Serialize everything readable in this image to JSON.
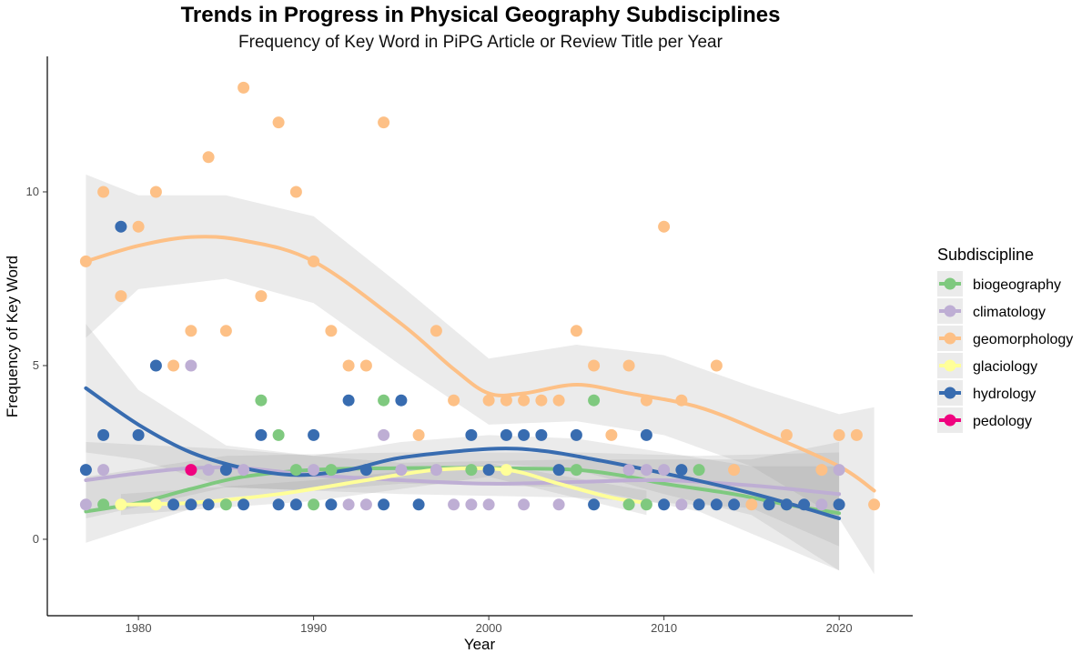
{
  "chart_data": {
    "type": "scatter",
    "title": "Trends in Progress in Physical Geography Subdisciplines",
    "subtitle": "Frequency of Key Word in PiPG Article or Review Title per Year",
    "xlabel": "Year",
    "ylabel": "Frequency of Key Word",
    "xlim": [
      1974.8,
      2024.2
    ],
    "ylim": [
      -2.2,
      13.9
    ],
    "xticks": [
      1980,
      1990,
      2000,
      2010,
      2020
    ],
    "yticks": [
      0,
      5,
      10
    ],
    "legend_title": "Subdiscipline",
    "legend_position": "right",
    "series": [
      {
        "name": "biogeography",
        "color": "#7fc97f",
        "points": [
          [
            1978,
            1
          ],
          [
            1985,
            1
          ],
          [
            1987,
            4
          ],
          [
            1988,
            3
          ],
          [
            1989,
            2
          ],
          [
            1990,
            1
          ],
          [
            1991,
            2
          ],
          [
            1994,
            4
          ],
          [
            1999,
            2
          ],
          [
            2005,
            2
          ],
          [
            2006,
            4
          ],
          [
            2008,
            1
          ],
          [
            2009,
            1
          ],
          [
            2012,
            2
          ],
          [
            2017,
            1
          ]
        ],
        "trend": [
          [
            1977,
            0.8
          ],
          [
            1980,
            1.05
          ],
          [
            1983,
            1.45
          ],
          [
            1986,
            1.8
          ],
          [
            1990,
            2.0
          ],
          [
            1995,
            2.05
          ],
          [
            2000,
            2.05
          ],
          [
            2005,
            2.0
          ],
          [
            2008,
            1.8
          ],
          [
            2010,
            1.6
          ],
          [
            2014,
            1.3
          ],
          [
            2017,
            1.0
          ],
          [
            2020,
            0.75
          ]
        ],
        "band_upper": [
          [
            1977,
            1.8
          ],
          [
            1985,
            2.4
          ],
          [
            1995,
            2.5
          ],
          [
            2005,
            2.5
          ],
          [
            2012,
            2.4
          ],
          [
            2020,
            2.5
          ]
        ],
        "band_lower": [
          [
            1977,
            -0.1
          ],
          [
            1985,
            1.2
          ],
          [
            1995,
            1.6
          ],
          [
            2005,
            1.5
          ],
          [
            2012,
            0.8
          ],
          [
            2020,
            -0.9
          ]
        ]
      },
      {
        "name": "climatology",
        "color": "#beaed4",
        "points": [
          [
            1977,
            1
          ],
          [
            1978,
            2
          ],
          [
            1983,
            5
          ],
          [
            1984,
            2
          ],
          [
            1986,
            2
          ],
          [
            1990,
            2
          ],
          [
            1992,
            1
          ],
          [
            1993,
            1
          ],
          [
            1994,
            3
          ],
          [
            1995,
            2
          ],
          [
            1997,
            2
          ],
          [
            1998,
            1
          ],
          [
            1999,
            1
          ],
          [
            2000,
            1
          ],
          [
            2002,
            1
          ],
          [
            2004,
            1
          ],
          [
            2008,
            2
          ],
          [
            2009,
            2
          ],
          [
            2010,
            2
          ],
          [
            2011,
            1
          ],
          [
            2019,
            1
          ],
          [
            2020,
            2
          ]
        ],
        "trend": [
          [
            1977,
            1.7
          ],
          [
            1980,
            1.9
          ],
          [
            1983,
            2.05
          ],
          [
            1986,
            2.05
          ],
          [
            1990,
            1.85
          ],
          [
            1995,
            1.7
          ],
          [
            2000,
            1.6
          ],
          [
            2005,
            1.65
          ],
          [
            2010,
            1.7
          ],
          [
            2015,
            1.55
          ],
          [
            2020,
            1.3
          ]
        ],
        "band_upper": [
          [
            1977,
            2.8
          ],
          [
            1985,
            2.6
          ],
          [
            1995,
            2.2
          ],
          [
            2005,
            2.3
          ],
          [
            2015,
            2.3
          ],
          [
            2020,
            2.8
          ]
        ],
        "band_lower": [
          [
            1977,
            0.6
          ],
          [
            1985,
            1.5
          ],
          [
            1995,
            1.3
          ],
          [
            2005,
            1.2
          ],
          [
            2015,
            0.9
          ],
          [
            2020,
            -0.2
          ]
        ]
      },
      {
        "name": "geomorphology",
        "color": "#fdc086",
        "points": [
          [
            1977,
            8
          ],
          [
            1978,
            10
          ],
          [
            1979,
            7
          ],
          [
            1980,
            9
          ],
          [
            1981,
            10
          ],
          [
            1982,
            5
          ],
          [
            1983,
            6
          ],
          [
            1984,
            11
          ],
          [
            1985,
            6
          ],
          [
            1986,
            13
          ],
          [
            1987,
            7
          ],
          [
            1988,
            12
          ],
          [
            1989,
            10
          ],
          [
            1990,
            8
          ],
          [
            1991,
            6
          ],
          [
            1992,
            5
          ],
          [
            1993,
            5
          ],
          [
            1994,
            12
          ],
          [
            1996,
            3
          ],
          [
            1997,
            6
          ],
          [
            1998,
            4
          ],
          [
            2000,
            4
          ],
          [
            2001,
            4
          ],
          [
            2002,
            4
          ],
          [
            2003,
            4
          ],
          [
            2004,
            4
          ],
          [
            2005,
            6
          ],
          [
            2006,
            5
          ],
          [
            2007,
            3
          ],
          [
            2008,
            5
          ],
          [
            2009,
            4
          ],
          [
            2010,
            9
          ],
          [
            2011,
            4
          ],
          [
            2013,
            5
          ],
          [
            2014,
            2
          ],
          [
            2015,
            1
          ],
          [
            2017,
            3
          ],
          [
            2019,
            2
          ],
          [
            2020,
            3
          ],
          [
            2021,
            3
          ],
          [
            2022,
            1
          ]
        ],
        "trend": [
          [
            1977,
            8.0
          ],
          [
            1980,
            8.45
          ],
          [
            1983,
            8.7
          ],
          [
            1986,
            8.6
          ],
          [
            1990,
            8.0
          ],
          [
            1995,
            6.2
          ],
          [
            1998,
            4.9
          ],
          [
            2000,
            4.2
          ],
          [
            2002,
            4.2
          ],
          [
            2005,
            4.45
          ],
          [
            2008,
            4.2
          ],
          [
            2012,
            3.8
          ],
          [
            2016,
            3.0
          ],
          [
            2020,
            2.1
          ],
          [
            2022,
            1.4
          ]
        ],
        "band_upper": [
          [
            1977,
            10.5
          ],
          [
            1980,
            9.9
          ],
          [
            1985,
            9.9
          ],
          [
            1990,
            9.3
          ],
          [
            1995,
            7.3
          ],
          [
            2000,
            5.2
          ],
          [
            2005,
            5.6
          ],
          [
            2010,
            5.3
          ],
          [
            2015,
            4.4
          ],
          [
            2020,
            3.6
          ],
          [
            2022,
            3.8
          ]
        ],
        "band_lower": [
          [
            1977,
            5.8
          ],
          [
            1980,
            7.2
          ],
          [
            1985,
            7.5
          ],
          [
            1990,
            6.8
          ],
          [
            1995,
            5.0
          ],
          [
            2000,
            3.3
          ],
          [
            2005,
            3.4
          ],
          [
            2010,
            3.0
          ],
          [
            2015,
            2.1
          ],
          [
            2020,
            0.6
          ],
          [
            2022,
            -1.0
          ]
        ]
      },
      {
        "name": "glaciology",
        "color": "#ffff99",
        "points": [
          [
            1979,
            1
          ],
          [
            1981,
            1
          ],
          [
            1984,
            1
          ],
          [
            2001,
            2
          ]
        ],
        "trend": [
          [
            1979,
            1.0
          ],
          [
            1983,
            1.05
          ],
          [
            1988,
            1.3
          ],
          [
            1993,
            1.7
          ],
          [
            1997,
            2.0
          ],
          [
            2001,
            2.0
          ],
          [
            2004,
            1.6
          ],
          [
            2007,
            1.2
          ],
          [
            2009,
            1.05
          ]
        ],
        "band_upper": [
          [
            1979,
            1.3
          ],
          [
            1990,
            1.7
          ],
          [
            2000,
            2.2
          ],
          [
            2009,
            1.4
          ]
        ],
        "band_lower": [
          [
            1979,
            0.7
          ],
          [
            1990,
            1.1
          ],
          [
            2000,
            1.8
          ],
          [
            2009,
            0.7
          ]
        ]
      },
      {
        "name": "hydrology",
        "color": "#386cb0",
        "points": [
          [
            1977,
            2
          ],
          [
            1978,
            3
          ],
          [
            1979,
            9
          ],
          [
            1980,
            3
          ],
          [
            1981,
            5
          ],
          [
            1982,
            1
          ],
          [
            1983,
            1
          ],
          [
            1984,
            1
          ],
          [
            1985,
            2
          ],
          [
            1986,
            1
          ],
          [
            1987,
            3
          ],
          [
            1988,
            1
          ],
          [
            1989,
            1
          ],
          [
            1990,
            3
          ],
          [
            1991,
            1
          ],
          [
            1992,
            4
          ],
          [
            1993,
            2
          ],
          [
            1994,
            1
          ],
          [
            1995,
            4
          ],
          [
            1996,
            1
          ],
          [
            1999,
            3
          ],
          [
            2000,
            2
          ],
          [
            2001,
            3
          ],
          [
            2002,
            3
          ],
          [
            2003,
            3
          ],
          [
            2004,
            2
          ],
          [
            2005,
            3
          ],
          [
            2006,
            1
          ],
          [
            2009,
            3
          ],
          [
            2010,
            1
          ],
          [
            2011,
            2
          ],
          [
            2012,
            1
          ],
          [
            2013,
            1
          ],
          [
            2014,
            1
          ],
          [
            2016,
            1
          ],
          [
            2017,
            1
          ],
          [
            2018,
            1
          ],
          [
            2020,
            1
          ]
        ],
        "trend": [
          [
            1977,
            4.35
          ],
          [
            1980,
            3.3
          ],
          [
            1983,
            2.5
          ],
          [
            1986,
            2.05
          ],
          [
            1989,
            1.85
          ],
          [
            1992,
            2.0
          ],
          [
            1995,
            2.35
          ],
          [
            2000,
            2.6
          ],
          [
            2003,
            2.55
          ],
          [
            2006,
            2.3
          ],
          [
            2010,
            1.9
          ],
          [
            2014,
            1.45
          ],
          [
            2017,
            1.05
          ],
          [
            2020,
            0.6
          ]
        ],
        "band_upper": [
          [
            1977,
            6.2
          ],
          [
            1980,
            4.3
          ],
          [
            1985,
            2.7
          ],
          [
            1990,
            2.4
          ],
          [
            1995,
            2.8
          ],
          [
            2000,
            3.0
          ],
          [
            2005,
            2.9
          ],
          [
            2010,
            2.5
          ],
          [
            2015,
            2.1
          ],
          [
            2020,
            2.1
          ]
        ],
        "band_lower": [
          [
            1977,
            2.5
          ],
          [
            1980,
            2.3
          ],
          [
            1985,
            1.5
          ],
          [
            1990,
            1.4
          ],
          [
            1995,
            1.9
          ],
          [
            2000,
            2.2
          ],
          [
            2005,
            2.0
          ],
          [
            2010,
            1.3
          ],
          [
            2015,
            0.7
          ],
          [
            2020,
            -0.9
          ]
        ]
      },
      {
        "name": "pedology",
        "color": "#f0027f",
        "points": [
          [
            1983,
            2
          ]
        ],
        "trend": [],
        "band_upper": [],
        "band_lower": []
      }
    ]
  }
}
